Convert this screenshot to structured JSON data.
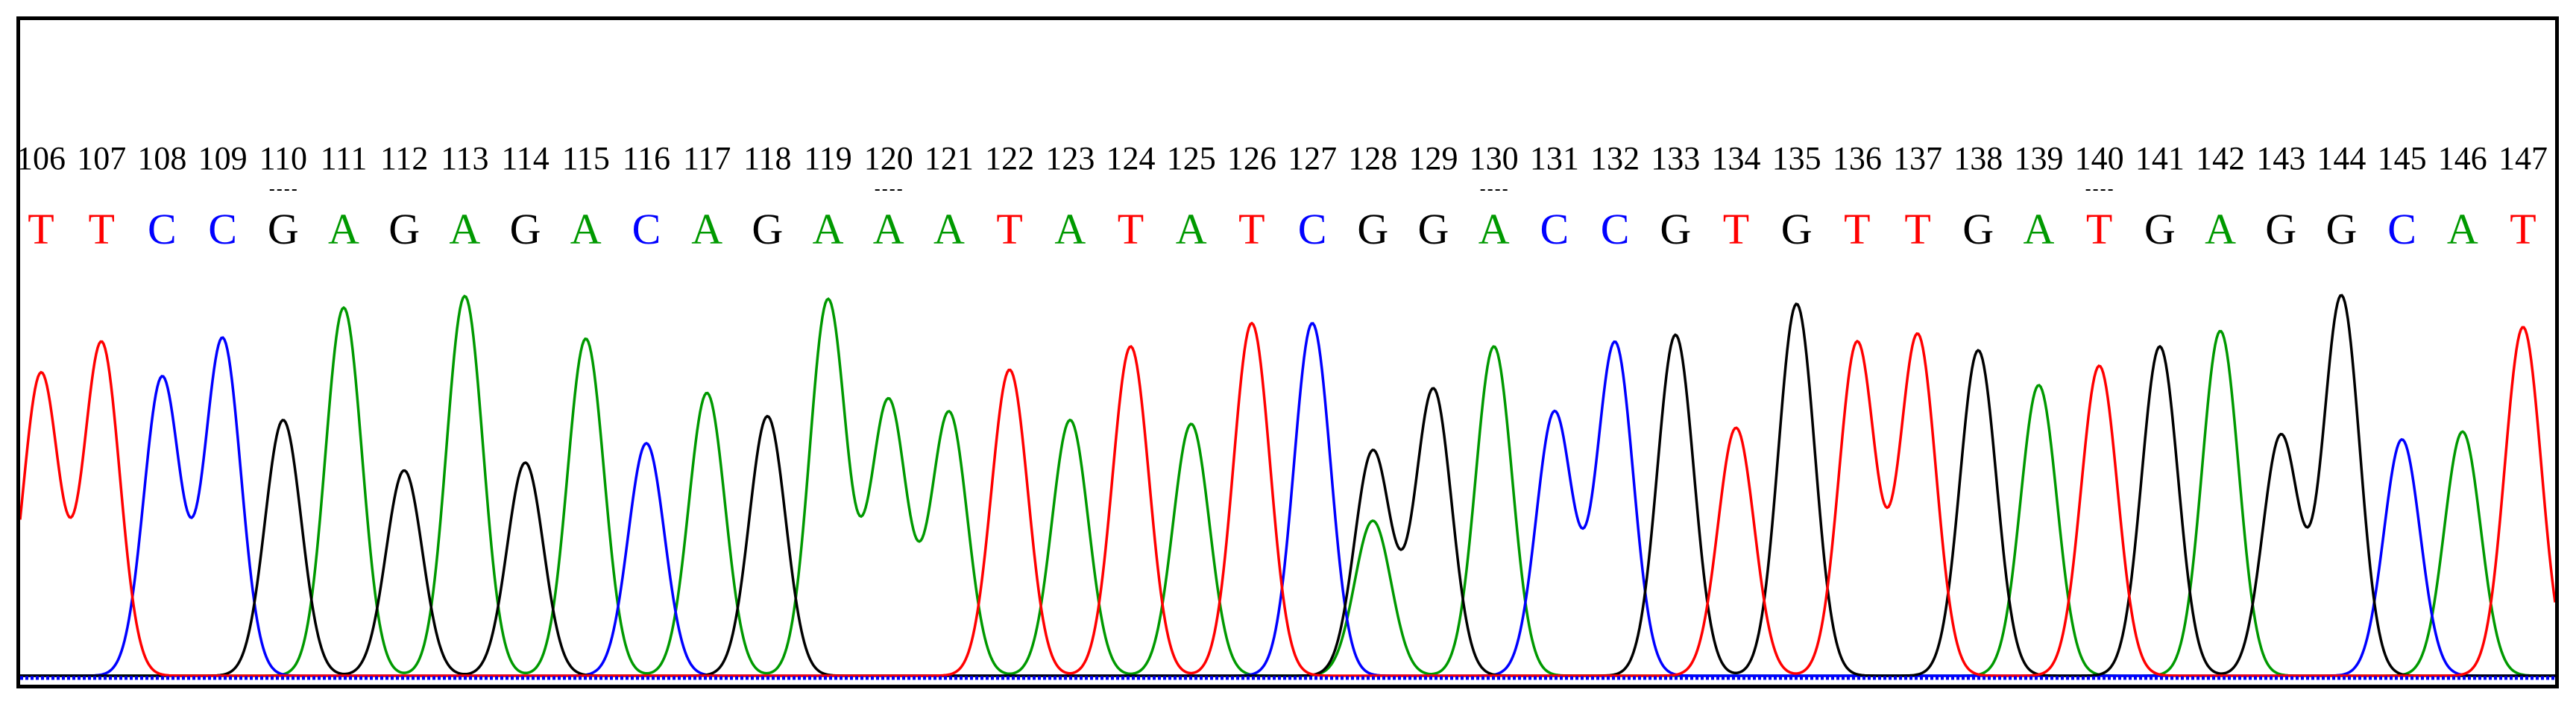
{
  "chart_data": {
    "type": "line",
    "title": "",
    "xlabel": "",
    "ylabel": "",
    "positions": [
      106,
      107,
      108,
      109,
      110,
      111,
      112,
      113,
      114,
      115,
      116,
      117,
      118,
      119,
      120,
      121,
      122,
      123,
      124,
      125,
      126,
      127,
      128,
      129,
      130,
      131,
      132,
      133,
      134,
      135,
      136,
      137,
      138,
      139,
      140,
      141,
      142,
      143,
      144,
      145,
      146,
      147
    ],
    "bases": [
      "T",
      "T",
      "C",
      "C",
      "G",
      "A",
      "G",
      "A",
      "G",
      "A",
      "C",
      "A",
      "G",
      "A",
      "A",
      "A",
      "T",
      "A",
      "T",
      "A",
      "T",
      "C",
      "G",
      "G",
      "A",
      "C",
      "C",
      "G",
      "T",
      "G",
      "T",
      "T",
      "G",
      "A",
      "T",
      "G",
      "A",
      "G",
      "G",
      "C",
      "A",
      "T"
    ],
    "peak_heights": [
      0.78,
      0.86,
      0.77,
      0.87,
      0.66,
      0.95,
      0.53,
      0.98,
      0.55,
      0.87,
      0.6,
      0.73,
      0.67,
      0.97,
      0.71,
      0.68,
      0.79,
      0.66,
      0.85,
      0.65,
      0.91,
      0.91,
      0.58,
      0.74,
      0.85,
      0.68,
      0.86,
      0.88,
      0.64,
      0.96,
      0.86,
      0.88,
      0.84,
      0.75,
      0.8,
      0.85,
      0.89,
      0.62,
      0.98,
      0.61,
      0.63,
      0.9
    ],
    "secondary_peaks": [
      {
        "position": 128,
        "base": "A",
        "height": 0.4
      }
    ],
    "ylim": [
      0,
      1
    ],
    "grid": false,
    "legend": "none"
  },
  "colors": {
    "A": "#009900",
    "C": "#0000ff",
    "G": "#000000",
    "T": "#ff0000",
    "frame": "#000000",
    "background": "#ffffff"
  }
}
